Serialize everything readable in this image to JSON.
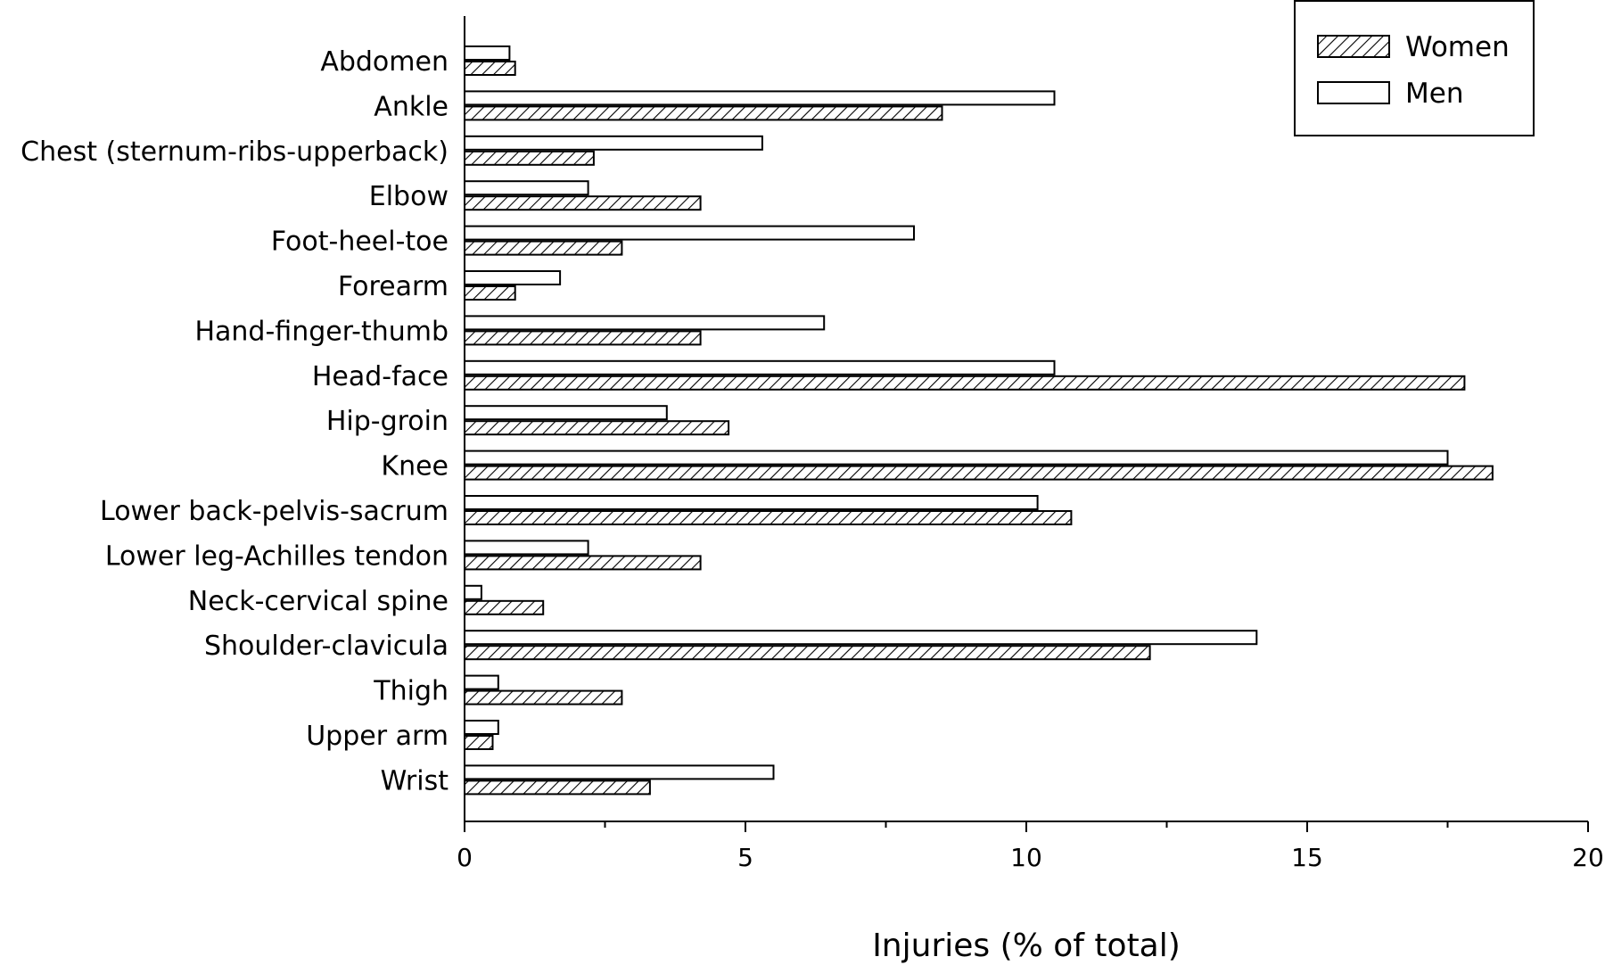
{
  "chart_data": {
    "type": "bar",
    "orientation": "horizontal",
    "categories": [
      "Abdomen",
      "Ankle",
      "Chest (sternum-ribs-upperback)",
      "Elbow",
      "Foot-heel-toe",
      "Forearm",
      "Hand-finger-thumb",
      "Head-face",
      "Hip-groin",
      "Knee",
      "Lower back-pelvis-sacrum",
      "Lower leg-Achilles tendon",
      "Neck-cervical spine",
      "Shoulder-clavicula",
      "Thigh",
      "Upper arm",
      "Wrist"
    ],
    "series": [
      {
        "name": "Men",
        "pattern": "none",
        "values": [
          0.8,
          10.5,
          5.3,
          2.2,
          8.0,
          1.7,
          6.4,
          10.5,
          3.6,
          17.5,
          10.2,
          2.2,
          0.3,
          14.1,
          0.6,
          0.6,
          5.5
        ]
      },
      {
        "name": "Women",
        "pattern": "diagonal-hatch",
        "values": [
          0.9,
          8.5,
          2.3,
          4.2,
          2.8,
          0.9,
          4.2,
          17.8,
          4.7,
          18.3,
          10.8,
          4.2,
          1.4,
          12.2,
          2.8,
          0.5,
          3.3
        ]
      }
    ],
    "xlabel": "Injuries (% of total)",
    "ylabel": "",
    "xlim": [
      0,
      20
    ],
    "xticks": [
      0,
      5,
      10,
      15,
      20
    ],
    "legend": {
      "position": "top-right",
      "entries": [
        "Women",
        "Men"
      ]
    },
    "grid": false
  },
  "colors": {
    "bar_fill": "#ffffff",
    "bar_stroke": "#000000",
    "hatch": "#000000"
  }
}
